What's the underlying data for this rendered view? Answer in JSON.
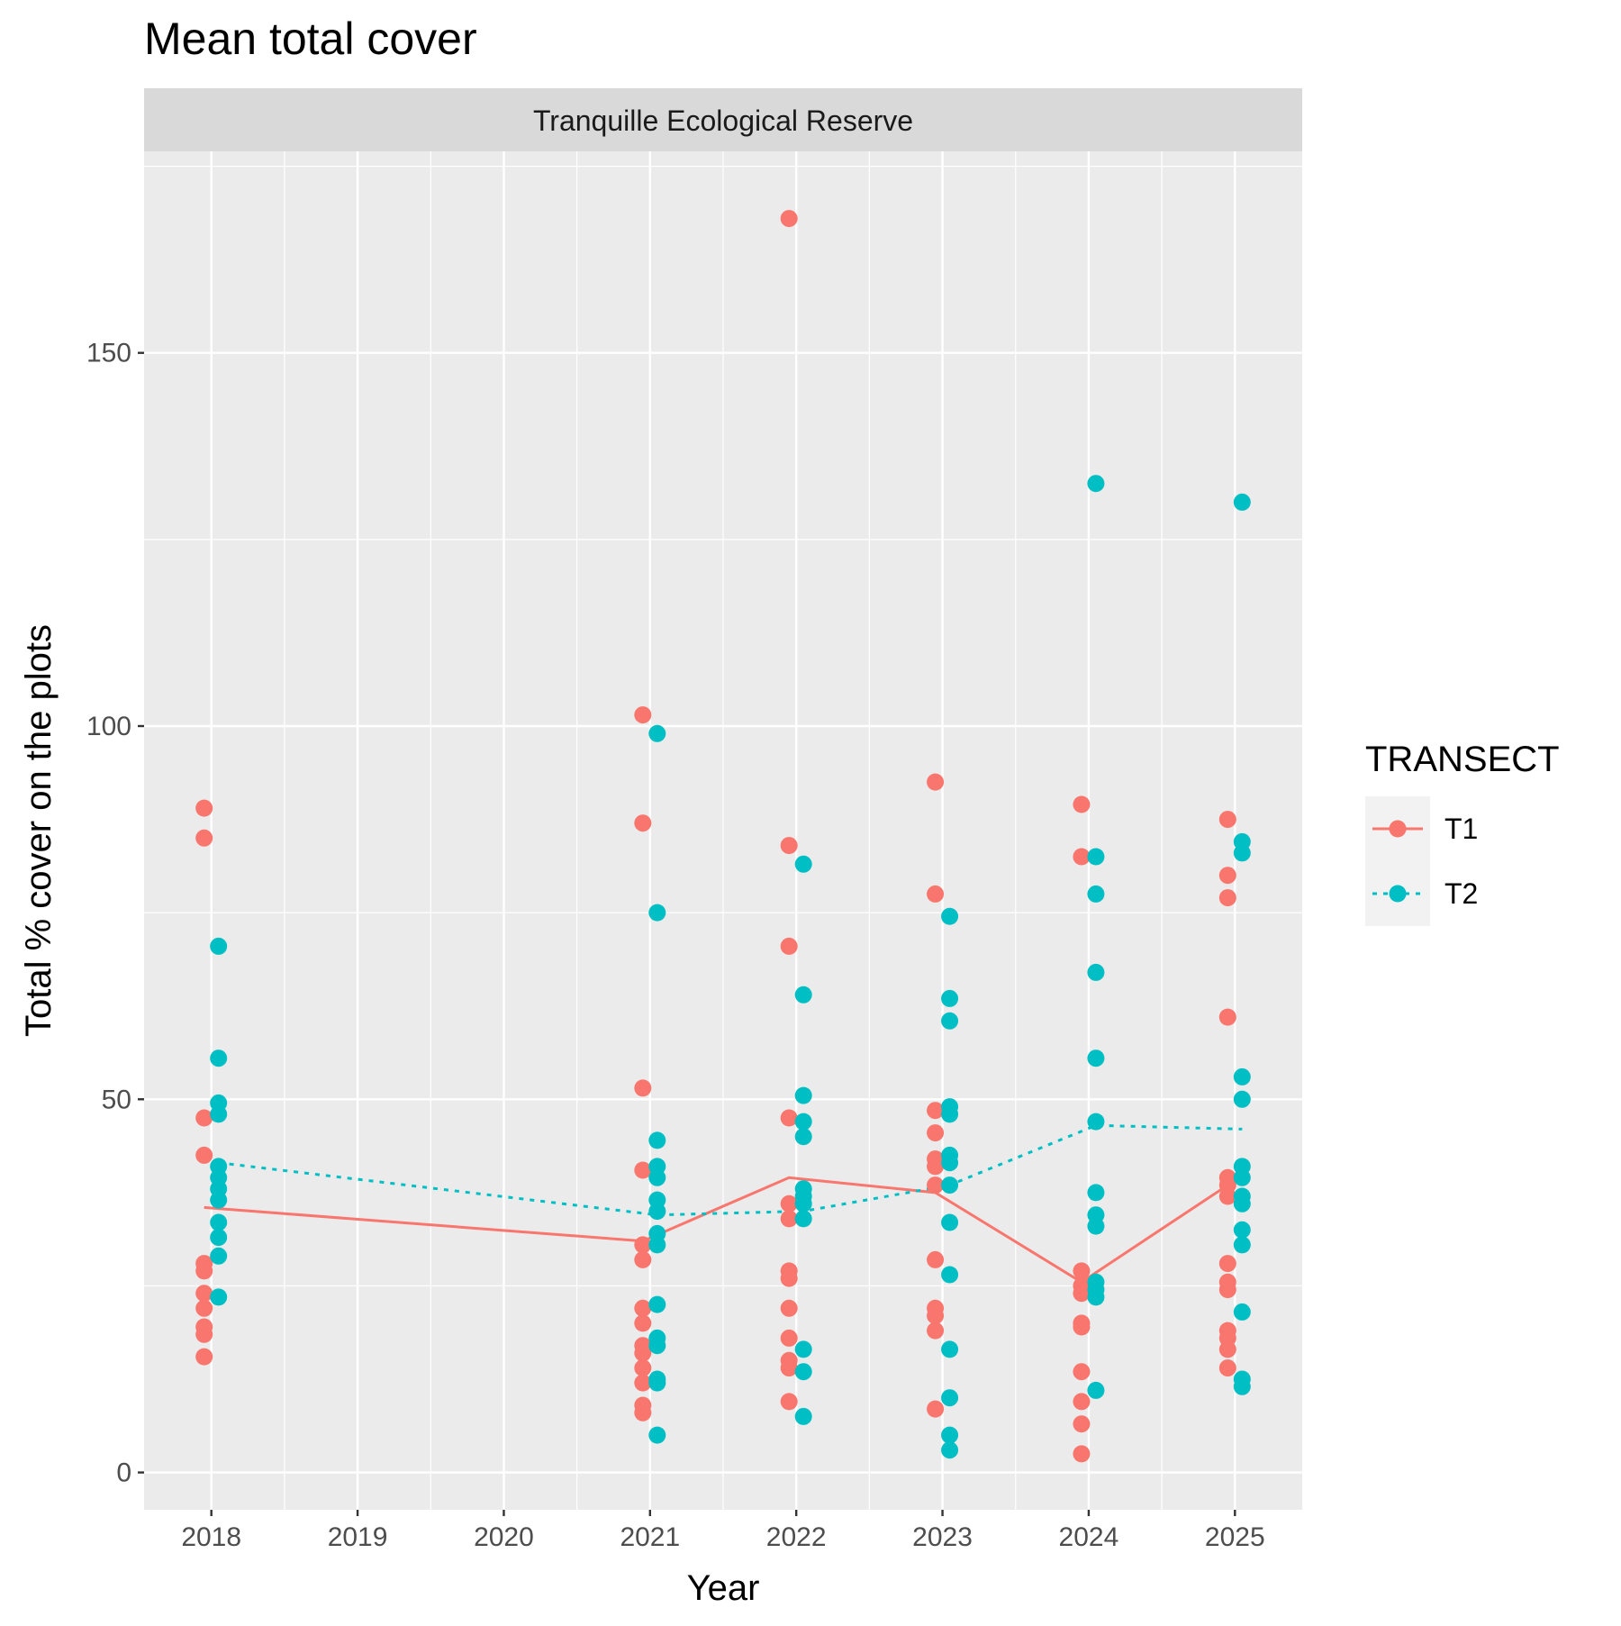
{
  "chart_data": {
    "type": "scatter",
    "title": "Mean total cover",
    "facet_label": "Tranquille Ecological Reserve",
    "xlabel": "Year",
    "ylabel": "Total % cover on the plots",
    "xlim": [
      2017.54,
      2025.46
    ],
    "ylim": [
      -5,
      177
    ],
    "x_ticks": [
      2018,
      2019,
      2020,
      2021,
      2022,
      2023,
      2024,
      2025
    ],
    "y_ticks": [
      0,
      50,
      100,
      150
    ],
    "y_minor": [
      25,
      75,
      125,
      175
    ],
    "grid": true,
    "legend": {
      "title": "TRANSECT",
      "position": "right",
      "entries": [
        "T1",
        "T2"
      ]
    },
    "series": [
      {
        "name": "T1",
        "color": "#F8766D",
        "line_style": "solid",
        "points": [
          [
            2018,
            89
          ],
          [
            2018,
            85
          ],
          [
            2018,
            47.5
          ],
          [
            2018,
            42.5
          ],
          [
            2018,
            28
          ],
          [
            2018,
            27
          ],
          [
            2018,
            24
          ],
          [
            2018,
            22
          ],
          [
            2018,
            19.5
          ],
          [
            2018,
            18.5
          ],
          [
            2018,
            15.5
          ],
          [
            2021,
            101.5
          ],
          [
            2021,
            87
          ],
          [
            2021,
            51.5
          ],
          [
            2021,
            40.5
          ],
          [
            2021,
            30.5
          ],
          [
            2021,
            28.5
          ],
          [
            2021,
            22
          ],
          [
            2021,
            20
          ],
          [
            2021,
            17
          ],
          [
            2021,
            16
          ],
          [
            2021,
            14
          ],
          [
            2021,
            12
          ],
          [
            2021,
            9
          ],
          [
            2021,
            8
          ],
          [
            2022,
            168
          ],
          [
            2022,
            84
          ],
          [
            2022,
            70.5
          ],
          [
            2022,
            47.5
          ],
          [
            2022,
            36
          ],
          [
            2022,
            34
          ],
          [
            2022,
            27
          ],
          [
            2022,
            26
          ],
          [
            2022,
            22
          ],
          [
            2022,
            18
          ],
          [
            2022,
            15
          ],
          [
            2022,
            14
          ],
          [
            2022,
            9.5
          ],
          [
            2023,
            92.5
          ],
          [
            2023,
            77.5
          ],
          [
            2023,
            48.5
          ],
          [
            2023,
            45.5
          ],
          [
            2023,
            42
          ],
          [
            2023,
            41
          ],
          [
            2023,
            38.5
          ],
          [
            2023,
            28.5
          ],
          [
            2023,
            22
          ],
          [
            2023,
            21
          ],
          [
            2023,
            19
          ],
          [
            2023,
            8.5
          ],
          [
            2024,
            89.5
          ],
          [
            2024,
            82.5
          ],
          [
            2024,
            27
          ],
          [
            2024,
            25
          ],
          [
            2024,
            24
          ],
          [
            2024,
            20
          ],
          [
            2024,
            19.5
          ],
          [
            2024,
            13.5
          ],
          [
            2024,
            9.5
          ],
          [
            2024,
            6.5
          ],
          [
            2024,
            2.5
          ],
          [
            2025,
            87.5
          ],
          [
            2025,
            80
          ],
          [
            2025,
            77
          ],
          [
            2025,
            61
          ],
          [
            2025,
            39.5
          ],
          [
            2025,
            38.5
          ],
          [
            2025,
            37
          ],
          [
            2025,
            28
          ],
          [
            2025,
            25.5
          ],
          [
            2025,
            24.5
          ],
          [
            2025,
            19
          ],
          [
            2025,
            18
          ],
          [
            2025,
            16.5
          ],
          [
            2025,
            14
          ]
        ],
        "mean_line": {
          "x": [
            2018,
            2021,
            2022,
            2023,
            2024,
            2025
          ],
          "y": [
            35.5,
            31,
            39.5,
            37.5,
            25.5,
            38.5
          ]
        }
      },
      {
        "name": "T2",
        "color": "#00BFC4",
        "line_style": "dotted",
        "points": [
          [
            2018,
            70.5
          ],
          [
            2018,
            55.5
          ],
          [
            2018,
            49.5
          ],
          [
            2018,
            48
          ],
          [
            2018,
            41
          ],
          [
            2018,
            39.5
          ],
          [
            2018,
            38
          ],
          [
            2018,
            36.5
          ],
          [
            2018,
            33.5
          ],
          [
            2018,
            31.5
          ],
          [
            2018,
            29
          ],
          [
            2018,
            23.5
          ],
          [
            2021,
            99
          ],
          [
            2021,
            75
          ],
          [
            2021,
            44.5
          ],
          [
            2021,
            41
          ],
          [
            2021,
            39.5
          ],
          [
            2021,
            36.5
          ],
          [
            2021,
            35
          ],
          [
            2021,
            32
          ],
          [
            2021,
            30.5
          ],
          [
            2021,
            22.5
          ],
          [
            2021,
            18
          ],
          [
            2021,
            17
          ],
          [
            2021,
            12.5
          ],
          [
            2021,
            12
          ],
          [
            2021,
            5
          ],
          [
            2022,
            81.5
          ],
          [
            2022,
            64
          ],
          [
            2022,
            50.5
          ],
          [
            2022,
            47
          ],
          [
            2022,
            45
          ],
          [
            2022,
            38
          ],
          [
            2022,
            37
          ],
          [
            2022,
            36
          ],
          [
            2022,
            34
          ],
          [
            2022,
            16.5
          ],
          [
            2022,
            13.5
          ],
          [
            2022,
            7.5
          ],
          [
            2023,
            74.5
          ],
          [
            2023,
            63.5
          ],
          [
            2023,
            60.5
          ],
          [
            2023,
            49
          ],
          [
            2023,
            48
          ],
          [
            2023,
            42.5
          ],
          [
            2023,
            41.5
          ],
          [
            2023,
            38.5
          ],
          [
            2023,
            33.5
          ],
          [
            2023,
            26.5
          ],
          [
            2023,
            16.5
          ],
          [
            2023,
            10
          ],
          [
            2023,
            5
          ],
          [
            2023,
            3
          ],
          [
            2024,
            132.5
          ],
          [
            2024,
            82.5
          ],
          [
            2024,
            77.5
          ],
          [
            2024,
            67
          ],
          [
            2024,
            55.5
          ],
          [
            2024,
            47
          ],
          [
            2024,
            37.5
          ],
          [
            2024,
            34.5
          ],
          [
            2024,
            33
          ],
          [
            2024,
            25.5
          ],
          [
            2024,
            24.5
          ],
          [
            2024,
            23.5
          ],
          [
            2024,
            11
          ],
          [
            2025,
            130
          ],
          [
            2025,
            84.5
          ],
          [
            2025,
            83
          ],
          [
            2025,
            53
          ],
          [
            2025,
            50
          ],
          [
            2025,
            41
          ],
          [
            2025,
            39.5
          ],
          [
            2025,
            37
          ],
          [
            2025,
            36
          ],
          [
            2025,
            32.5
          ],
          [
            2025,
            30.5
          ],
          [
            2025,
            21.5
          ],
          [
            2025,
            12.5
          ],
          [
            2025,
            11.5
          ]
        ],
        "mean_line": {
          "x": [
            2018,
            2021,
            2022,
            2023,
            2024,
            2025
          ],
          "y": [
            41.5,
            34.5,
            35,
            38.5,
            46.5,
            46
          ]
        }
      }
    ]
  }
}
